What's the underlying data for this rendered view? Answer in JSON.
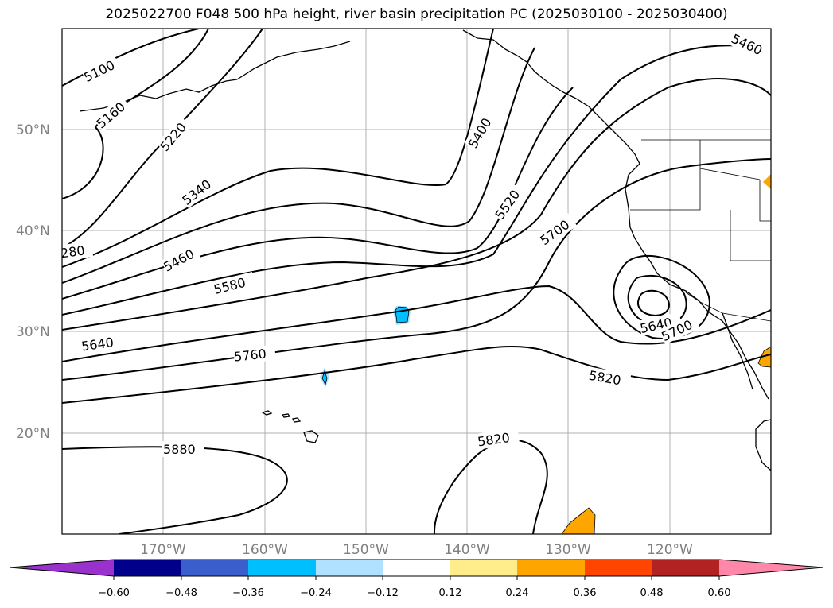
{
  "title": "2025022700 F048 500 hPa height, river basin precipitation PC (2025030100 - 2025030400)",
  "map": {
    "projection": "plate-carree",
    "lon_range": [
      -180,
      -110
    ],
    "lat_range": [
      10,
      60
    ],
    "lat_ticks": [
      "50°N",
      "40°N",
      "30°N",
      "20°N"
    ],
    "lon_ticks": [
      "170°W",
      "160°W",
      "150°W",
      "140°W",
      "130°W",
      "120°W"
    ],
    "grid": true,
    "contour_variable": "500 hPa height",
    "contour_labels": [
      "5100",
      "5160",
      "5220",
      "5340",
      "5400",
      "5460",
      "5520",
      "5580",
      "5640",
      "5700",
      "5760",
      "5820",
      "5880",
      "280",
      "5460",
      "5640",
      "5700",
      "5820"
    ],
    "contour_colors": {
      "line": "#000000"
    },
    "shaded_variable": "river basin precipitation PC"
  },
  "colorbar": {
    "ticks": [
      "−0.60",
      "−0.48",
      "−0.36",
      "−0.24",
      "−0.12",
      "0.12",
      "0.24",
      "0.36",
      "0.48",
      "0.60"
    ],
    "colors": [
      "#9932cc",
      "#00008b",
      "#3a5fcd",
      "#00bfff",
      "#b0e2ff",
      "#ffffff",
      "#ffec8b",
      "#ffa500",
      "#ff4500",
      "#b22222",
      "#ff88aa"
    ],
    "extend": "both"
  }
}
